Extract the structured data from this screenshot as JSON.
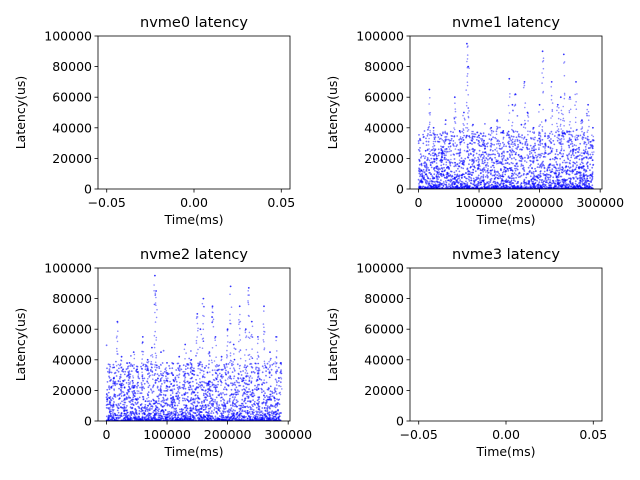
{
  "chart_data": [
    {
      "type": "scatter",
      "title": "nvme0 latency",
      "xlabel": "Time(ms)",
      "ylabel": "Latency(us)",
      "xlim": [
        -0.055,
        0.055
      ],
      "ylim": [
        0,
        100000
      ],
      "xticks": [
        -0.05,
        0.0,
        0.05
      ],
      "xtick_labels": [
        "−0.05",
        "0.00",
        "0.05"
      ],
      "yticks": [
        0,
        20000,
        40000,
        60000,
        80000,
        100000
      ],
      "ytick_labels": [
        "0",
        "20000",
        "40000",
        "60000",
        "80000",
        "100000"
      ],
      "point_color": "#0000ff",
      "x": [],
      "y": []
    },
    {
      "type": "scatter",
      "title": "nvme1 latency",
      "xlabel": "Time(ms)",
      "ylabel": "Latency(us)",
      "xlim": [
        -14000,
        303000
      ],
      "ylim": [
        0,
        100000
      ],
      "xticks": [
        0,
        100000,
        200000,
        300000
      ],
      "xtick_labels": [
        "0",
        "100000",
        "200000",
        "300000"
      ],
      "yticks": [
        0,
        20000,
        40000,
        60000,
        80000,
        100000
      ],
      "ytick_labels": [
        "0",
        "20000",
        "40000",
        "60000",
        "80000",
        "100000"
      ],
      "point_color": "#0000ff",
      "x": [
        5000,
        12000,
        18000,
        25000,
        30000,
        38000,
        45000,
        52000,
        60000,
        68000,
        75000,
        80000,
        82000,
        90000,
        100000,
        110000,
        120000,
        130000,
        140000,
        150000,
        155000,
        160000,
        170000,
        175000,
        180000,
        190000,
        200000,
        205000,
        210000,
        220000,
        230000,
        235000,
        240000,
        250000,
        260000,
        270000,
        280000,
        288000
      ],
      "y": [
        12000,
        25000,
        65000,
        40000,
        20000,
        35000,
        45000,
        30000,
        60000,
        38000,
        50000,
        95000,
        80000,
        42000,
        35000,
        28000,
        40000,
        45000,
        38000,
        72000,
        55000,
        62000,
        42000,
        70000,
        50000,
        40000,
        55000,
        90000,
        45000,
        70000,
        55000,
        60000,
        88000,
        60000,
        70000,
        45000,
        55000,
        40000
      ]
    },
    {
      "type": "scatter",
      "title": "nvme2 latency",
      "xlabel": "Time(ms)",
      "ylabel": "Latency(us)",
      "xlim": [
        -14000,
        303000
      ],
      "ylim": [
        0,
        100000
      ],
      "xticks": [
        0,
        100000,
        200000,
        300000
      ],
      "xtick_labels": [
        "0",
        "100000",
        "200000",
        "300000"
      ],
      "yticks": [
        0,
        20000,
        40000,
        60000,
        80000,
        100000
      ],
      "ytick_labels": [
        "0",
        "20000",
        "40000",
        "60000",
        "80000",
        "100000"
      ],
      "point_color": "#0000ff",
      "x": [
        5000,
        12000,
        18000,
        25000,
        30000,
        38000,
        45000,
        52000,
        60000,
        68000,
        75000,
        80000,
        82000,
        90000,
        100000,
        110000,
        120000,
        130000,
        140000,
        150000,
        155000,
        160000,
        170000,
        175000,
        180000,
        190000,
        200000,
        205000,
        210000,
        220000,
        230000,
        235000,
        240000,
        250000,
        260000,
        270000,
        280000,
        288000
      ],
      "y": [
        15000,
        28000,
        65000,
        42000,
        22000,
        38000,
        45000,
        32000,
        55000,
        40000,
        48000,
        95000,
        85000,
        45000,
        38000,
        30000,
        42000,
        50000,
        40000,
        70000,
        60000,
        80000,
        45000,
        75000,
        55000,
        42000,
        60000,
        88000,
        50000,
        75000,
        60000,
        87000,
        65000,
        55000,
        75000,
        45000,
        55000,
        38000
      ]
    },
    {
      "type": "scatter",
      "title": "nvme3 latency",
      "xlabel": "Time(ms)",
      "ylabel": "Latency(us)",
      "xlim": [
        -0.055,
        0.055
      ],
      "ylim": [
        0,
        100000
      ],
      "xticks": [
        -0.05,
        0.0,
        0.05
      ],
      "xtick_labels": [
        "−0.05",
        "0.00",
        "0.05"
      ],
      "yticks": [
        0,
        20000,
        40000,
        60000,
        80000,
        100000
      ],
      "ytick_labels": [
        "0",
        "20000",
        "40000",
        "60000",
        "80000",
        "100000"
      ],
      "point_color": "#0000ff",
      "x": [],
      "y": []
    }
  ]
}
